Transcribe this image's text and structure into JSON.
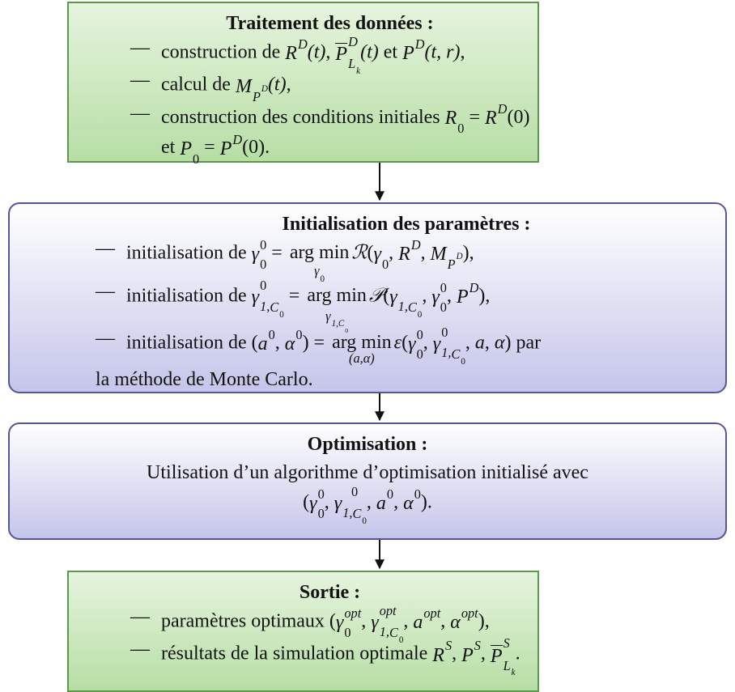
{
  "marker": "—",
  "nodes": [
    {
      "title": "Traitement des données :",
      "items": [
        [
          [
            "construction de ",
            {
              "b": "R",
              "sup": "D"
            },
            {
              "m": "(t)"
            },
            ", ",
            {
              "b": "P",
              "bar": true,
              "sup": "D",
              "sub": {
                "b": "L",
                "sub": "k"
              }
            },
            {
              "m": "(t)"
            },
            " et ",
            {
              "b": "P",
              "sup": "D"
            },
            {
              "m": "(t, r)"
            },
            ","
          ]
        ],
        [
          [
            "calcul de ",
            {
              "b": "M",
              "sub": {
                "b": "P",
                "sup": "D"
              }
            },
            {
              "m": "(t)"
            },
            ","
          ]
        ],
        [
          [
            "construction des conditions initiales ",
            {
              "b": "R",
              "sub": "0"
            },
            " = ",
            {
              "b": "R",
              "sup": "D"
            },
            "(0)"
          ],
          [
            "et ",
            {
              "b": "P",
              "sub": "0"
            },
            " = ",
            {
              "b": "P",
              "sup": "D"
            },
            "(0)."
          ]
        ]
      ]
    },
    {
      "title": "Initialisation des paramètres :",
      "items": [
        [
          [
            "initialisation de ",
            {
              "b": "γ",
              "sub": "0",
              "sup": "0"
            },
            " = ",
            {
              "op": "arg min",
              "under": {
                "b": "γ",
                "sub": "0"
              }
            },
            {
              "m": "ℛ"
            },
            "(",
            {
              "b": "γ",
              "sub": "0"
            },
            ", ",
            {
              "b": "R",
              "sup": "D"
            },
            ", ",
            {
              "b": "M",
              "sub": {
                "b": "P",
                "sup": "D"
              }
            },
            "),"
          ]
        ],
        [
          [
            "initialisation de ",
            {
              "b": "γ",
              "sup": "0",
              "sub": [
                "1,",
                {
                  "b": "C",
                  "sub": "0"
                }
              ]
            },
            " = ",
            {
              "op": "arg min",
              "under": {
                "b": "γ",
                "sub": [
                  "1,",
                  {
                    "b": "C",
                    "sub": "0"
                  }
                ]
              }
            },
            {
              "m": "𝒫"
            },
            "(",
            {
              "b": "γ",
              "sub": [
                "1,",
                {
                  "b": "C",
                  "sub": "0"
                }
              ]
            },
            ", ",
            {
              "b": "γ",
              "sub": "0",
              "sup": "0"
            },
            ", ",
            {
              "b": "P",
              "sup": "D"
            },
            "),"
          ]
        ],
        [
          [
            "initialisation de (",
            {
              "b": "a",
              "sup": "0"
            },
            ", ",
            {
              "b": "α",
              "sup": "0"
            },
            ") = ",
            {
              "op": "arg min",
              "under": {
                "m": "(a,α)"
              }
            },
            {
              "m": "ε"
            },
            "(",
            {
              "b": "γ",
              "sub": "0",
              "sup": "0"
            },
            ", ",
            {
              "b": "γ",
              "sup": "0",
              "sub": [
                "1,",
                {
                  "b": "C",
                  "sub": "0"
                }
              ]
            },
            ", ",
            {
              "m": "a"
            },
            ", ",
            {
              "m": "α"
            },
            ") par"
          ],
          [
            "la méthode de Monte Carlo."
          ]
        ]
      ]
    },
    {
      "title": "Optimisation :",
      "lines": [
        [
          "Utilisation d’un algorithme d’optimisation initialisé avec"
        ],
        [
          "(",
          {
            "b": "γ",
            "sub": "0",
            "sup": "0"
          },
          ", ",
          {
            "b": "γ",
            "sup": "0",
            "sub": [
              "1,",
              {
                "b": "C",
                "sub": "0"
              }
            ]
          },
          ", ",
          {
            "b": "a",
            "sup": "0"
          },
          ", ",
          {
            "b": "α",
            "sup": "0"
          },
          ")."
        ]
      ]
    },
    {
      "title": "Sortie :",
      "items": [
        [
          [
            "paramètres optimaux (",
            {
              "b": "γ",
              "sub": "0",
              "sup": "opt"
            },
            ", ",
            {
              "b": "γ",
              "sup": "opt",
              "sub": [
                "1,",
                {
                  "b": "C",
                  "sub": "0"
                }
              ]
            },
            ", ",
            {
              "b": "a",
              "sup": "opt"
            },
            ", ",
            {
              "b": "α",
              "sup": "opt"
            },
            "),"
          ]
        ],
        [
          [
            "résultats de la simulation optimale ",
            {
              "b": "R",
              "sup": "S"
            },
            ", ",
            {
              "b": "P",
              "sup": "S"
            },
            ", ",
            {
              "b": "P",
              "bar": true,
              "sup": "S",
              "sub": {
                "b": "L",
                "sub": "k"
              }
            },
            "."
          ]
        ]
      ]
    }
  ]
}
